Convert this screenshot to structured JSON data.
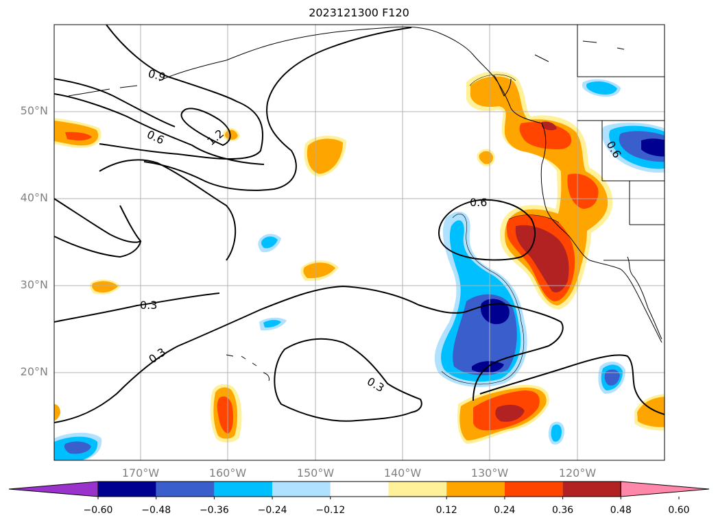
{
  "title": "2023121300 F120",
  "map": {
    "lat_ticks": [
      "50°N",
      "40°N",
      "30°N",
      "20°N"
    ],
    "lon_ticks": [
      "170°W",
      "160°W",
      "150°W",
      "140°W",
      "130°W",
      "120°W"
    ],
    "contour_labels": [
      "0.9",
      "0.6",
      "1.2",
      "0.3",
      "0.3",
      "0.6",
      "0.3",
      "0.6"
    ]
  },
  "colorbar": {
    "colors": [
      "#9933cc",
      "#000090",
      "#3a5fcd",
      "#00bfff",
      "#b0e2ff",
      "#ffffff",
      "#fff09a",
      "#ffa500",
      "#ff4500",
      "#b22222",
      "#ff88aa"
    ],
    "tick_labels": [
      "−0.60",
      "−0.48",
      "−0.36",
      "−0.24",
      "−0.12",
      "0.12",
      "0.24",
      "0.36",
      "0.48",
      "0.60"
    ]
  }
}
